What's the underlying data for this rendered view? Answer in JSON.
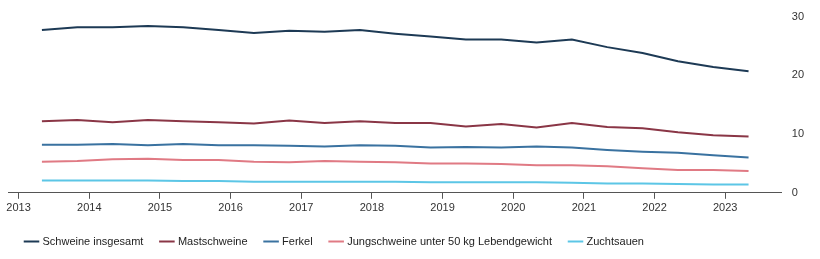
{
  "chart_data": {
    "type": "line",
    "x": [
      2013.33,
      2013.83,
      2014.33,
      2014.83,
      2015.33,
      2015.83,
      2016.33,
      2016.83,
      2017.33,
      2017.83,
      2018.33,
      2018.83,
      2019.33,
      2019.83,
      2020.33,
      2020.83,
      2021.33,
      2021.83,
      2022.33,
      2022.83,
      2023.33
    ],
    "series": [
      {
        "name": "Schweine insgesamt",
        "color": "#1d3a55",
        "values": [
          27.7,
          28.2,
          28.2,
          28.4,
          28.2,
          27.7,
          27.2,
          27.6,
          27.4,
          27.7,
          27.1,
          26.6,
          26.1,
          26.1,
          25.6,
          26.1,
          24.8,
          23.8,
          22.4,
          21.4,
          20.7
        ]
      },
      {
        "name": "Mastschweine",
        "color": "#8a3646",
        "values": [
          12.2,
          12.4,
          12.0,
          12.4,
          12.2,
          12.0,
          11.8,
          12.3,
          11.9,
          12.2,
          11.9,
          11.9,
          11.3,
          11.7,
          11.1,
          11.9,
          11.2,
          11.0,
          10.3,
          9.8,
          9.6
        ]
      },
      {
        "name": "Ferkel",
        "color": "#3a72a0",
        "values": [
          8.2,
          8.2,
          8.3,
          8.1,
          8.3,
          8.1,
          8.1,
          8.0,
          7.9,
          8.1,
          8.0,
          7.7,
          7.8,
          7.7,
          7.9,
          7.7,
          7.3,
          7.0,
          6.8,
          6.4,
          6.0
        ]
      },
      {
        "name": "Jungschweine unter 50 kg Lebendgewicht",
        "color": "#e07a84",
        "values": [
          5.3,
          5.4,
          5.7,
          5.8,
          5.6,
          5.6,
          5.3,
          5.2,
          5.4,
          5.3,
          5.2,
          5.0,
          5.0,
          4.9,
          4.7,
          4.7,
          4.5,
          4.2,
          3.9,
          3.9,
          3.7
        ]
      },
      {
        "name": "Zuchtsauen",
        "color": "#5cc6e6",
        "values": [
          2.1,
          2.1,
          2.1,
          2.1,
          2.0,
          2.0,
          1.9,
          1.9,
          1.9,
          1.9,
          1.9,
          1.8,
          1.8,
          1.8,
          1.8,
          1.7,
          1.6,
          1.6,
          1.5,
          1.4,
          1.4
        ]
      }
    ],
    "xlim": [
      2012.85,
      2023.8
    ],
    "xticks": [
      2013,
      2014,
      2015,
      2016,
      2017,
      2018,
      2019,
      2020,
      2021,
      2022,
      2023
    ],
    "ylim": [
      0,
      30
    ],
    "yticks": [
      0,
      10,
      20,
      30
    ],
    "grid": false,
    "legend": "bottom"
  }
}
